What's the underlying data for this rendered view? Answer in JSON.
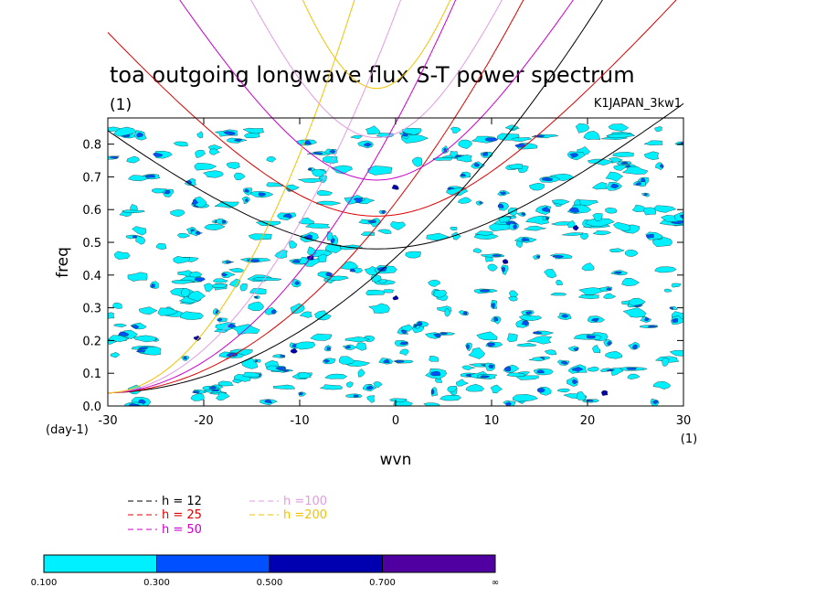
{
  "chart_data": {
    "type": "heatmap",
    "title": "toa outgoing longwave flux S-T power spectrum",
    "subtitle_left": "(1)",
    "subtitle_right": "K1JAPAN_3kw1",
    "xlabel": "wvn",
    "xunit": "(1)",
    "ylabel": "freq",
    "yunit": "(day-1)",
    "xlim": [
      -30,
      30
    ],
    "ylim": [
      0.0,
      0.88
    ],
    "xticks": [
      "-30",
      "-20",
      "-10",
      "0",
      "10",
      "20",
      "30"
    ],
    "yticks": [
      "0.0",
      "0.1",
      "0.2",
      "0.3",
      "0.4",
      "0.5",
      "0.6",
      "0.7",
      "0.8"
    ],
    "legend": [
      {
        "label": "h = 12",
        "color": "#000000"
      },
      {
        "label": "h = 25",
        "color": "#dd0000"
      },
      {
        "label": "h = 50",
        "color": "#cc00cc"
      },
      {
        "label": "h =100",
        "color": "#e39be3"
      },
      {
        "label": "h =200",
        "color": "#f2c200"
      }
    ],
    "colorbar": {
      "labels": [
        "0.100",
        "0.300",
        "0.500",
        "0.700",
        "∞"
      ],
      "colors": [
        "#00f0ff",
        "#0050ff",
        "#0000b0",
        "#5000a0"
      ]
    },
    "dispersion_curves": {
      "inertio_gravity_min_freq": {
        "h12": 0.48,
        "h25": 0.58,
        "h50": 0.69,
        "h100": 0.82,
        "h200": 0.97
      },
      "kelvin_slope": {
        "h12": 0.026,
        "h25": 0.037,
        "h50": 0.053,
        "h100": 0.075,
        "h200": 0.106
      }
    },
    "contour_description": "patchy low-level spectral power, mostly 0.1-0.3 with scattered 0.3-0.5 and isolated 0.5-0.7 cells"
  }
}
